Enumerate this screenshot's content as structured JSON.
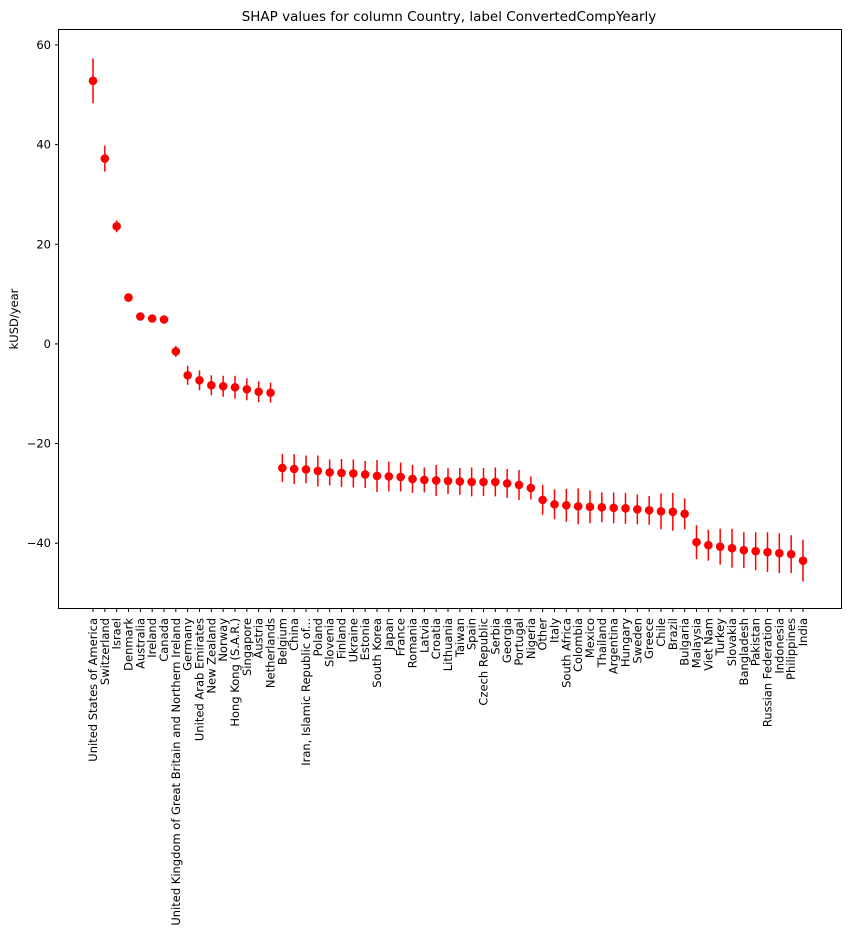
{
  "chart_data": {
    "type": "scatter",
    "title": "SHAP values for column Country, label ConvertedCompYearly",
    "xlabel": "",
    "ylabel": "kUSD/year",
    "ylim": [
      -53,
      63
    ],
    "yticks": [
      -40,
      -20,
      0,
      20,
      40,
      60
    ],
    "ytick_labels": [
      "−40",
      "−20",
      "0",
      "20",
      "40",
      "60"
    ],
    "grid": false,
    "marker_color": "#ff0000",
    "categories": [
      "United States of America",
      "Switzerland",
      "Israel",
      "Denmark",
      "Australia",
      "Ireland",
      "Canada",
      "United Kingdom of Great Britain and Northern Ireland",
      "Germany",
      "United Arab Emirates",
      "New Zealand",
      "Norway",
      "Hong Kong (S.A.R.)",
      "Singapore",
      "Austria",
      "Netherlands",
      "Belgium",
      "China",
      "Iran, Islamic Republic of...",
      "Poland",
      "Slovenia",
      "Finland",
      "Ukraine",
      "Estonia",
      "South Korea",
      "Japan",
      "France",
      "Romania",
      "Latvia",
      "Croatia",
      "Lithuania",
      "Taiwan",
      "Spain",
      "Czech Republic",
      "Serbia",
      "Georgia",
      "Portugal",
      "Nigeria",
      "Other",
      "Italy",
      "South Africa",
      "Colombia",
      "Mexico",
      "Thailand",
      "Argentina",
      "Hungary",
      "Sweden",
      "Greece",
      "Chile",
      "Brazil",
      "Bulgaria",
      "Malaysia",
      "Viet Nam",
      "Turkey",
      "Slovakia",
      "Bangladesh",
      "Pakistan",
      "Russian Federation",
      "Indonesia",
      "Philippines",
      "India"
    ],
    "values": [
      52.8,
      37.2,
      23.6,
      9.3,
      5.5,
      5.1,
      4.9,
      -1.5,
      -6.3,
      -7.3,
      -8.3,
      -8.5,
      -8.7,
      -9.1,
      -9.6,
      -9.8,
      -24.9,
      -25.1,
      -25.2,
      -25.5,
      -25.8,
      -25.9,
      -26.0,
      -26.2,
      -26.5,
      -26.6,
      -26.7,
      -27.1,
      -27.3,
      -27.4,
      -27.5,
      -27.6,
      -27.7,
      -27.7,
      -27.7,
      -28.0,
      -28.3,
      -28.9,
      -31.3,
      -32.2,
      -32.4,
      -32.6,
      -32.7,
      -32.8,
      -32.9,
      -33.0,
      -33.2,
      -33.4,
      -33.6,
      -33.7,
      -34.1,
      -39.8,
      -40.4,
      -40.7,
      -41.0,
      -41.4,
      -41.6,
      -41.8,
      -42.0,
      -42.2,
      -43.5
    ],
    "errors": [
      4.5,
      2.6,
      1.2,
      0.6,
      0.6,
      0.5,
      0.6,
      1.1,
      1.9,
      2.0,
      2.0,
      2.1,
      2.3,
      2.2,
      2.1,
      2.0,
      2.8,
      3.0,
      2.8,
      3.1,
      2.6,
      2.8,
      2.8,
      2.7,
      3.2,
      3.0,
      2.9,
      2.8,
      2.5,
      3.1,
      2.6,
      2.7,
      2.9,
      2.8,
      2.9,
      2.9,
      3.0,
      2.3,
      3.0,
      3.0,
      3.3,
      3.6,
      3.3,
      3.0,
      3.1,
      3.1,
      3.0,
      2.9,
      3.6,
      3.8,
      3.1,
      3.4,
      3.1,
      3.6,
      3.9,
      3.6,
      3.8,
      4.0,
      4.0,
      3.8,
      4.2
    ]
  }
}
